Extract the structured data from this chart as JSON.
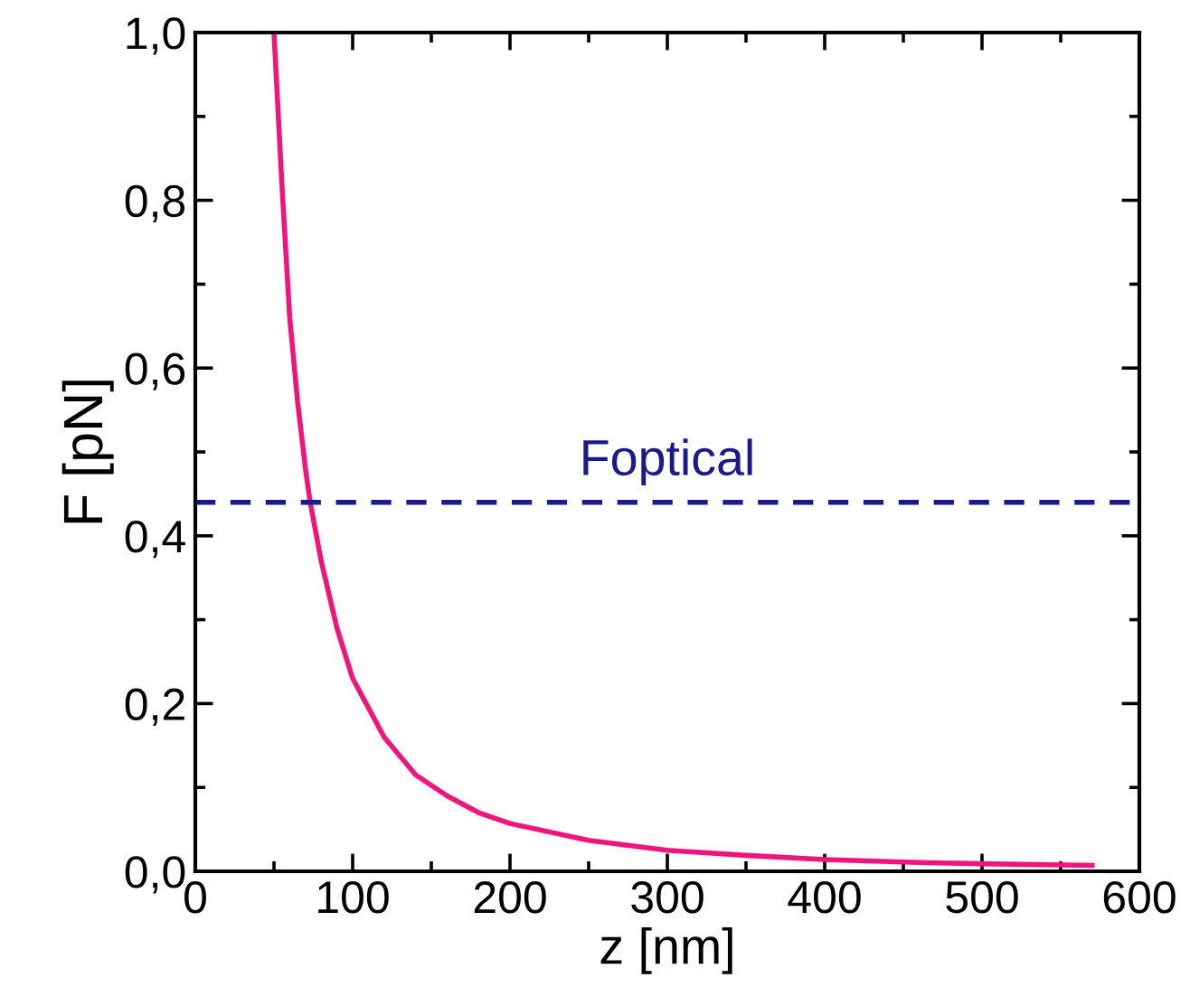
{
  "chart_data": {
    "type": "line",
    "xlabel": "z [nm]",
    "ylabel": "F [pN]",
    "xlim": [
      0,
      600
    ],
    "ylim": [
      0,
      1.0
    ],
    "xticks": [
      0,
      100,
      200,
      300,
      400,
      500,
      600
    ],
    "yticks": [
      {
        "value": 0,
        "label": "0,0"
      },
      {
        "value": 0.2,
        "label": "0,2"
      },
      {
        "value": 0.4,
        "label": "0,4"
      },
      {
        "value": 0.6,
        "label": "0,6"
      },
      {
        "value": 0.8,
        "label": "0,8"
      },
      {
        "value": 1.0,
        "label": "1,0"
      }
    ],
    "grid": false,
    "series": [
      {
        "color": "#f0147c",
        "x": [
          50,
          55,
          60,
          65,
          70,
          73,
          80,
          90,
          100,
          120,
          140,
          160,
          180,
          200,
          250,
          300,
          350,
          400,
          450,
          500,
          570
        ],
        "values": [
          1.0,
          0.82,
          0.66,
          0.56,
          0.48,
          0.44,
          0.37,
          0.29,
          0.23,
          0.16,
          0.115,
          0.09,
          0.07,
          0.057,
          0.037,
          0.025,
          0.019,
          0.014,
          0.011,
          0.009,
          0.007
        ]
      }
    ],
    "ref_lines": [
      {
        "axis": "y",
        "value": 0.44,
        "label": "Foptical",
        "color": "#1a1a8c",
        "line_style": "dashed"
      }
    ]
  }
}
